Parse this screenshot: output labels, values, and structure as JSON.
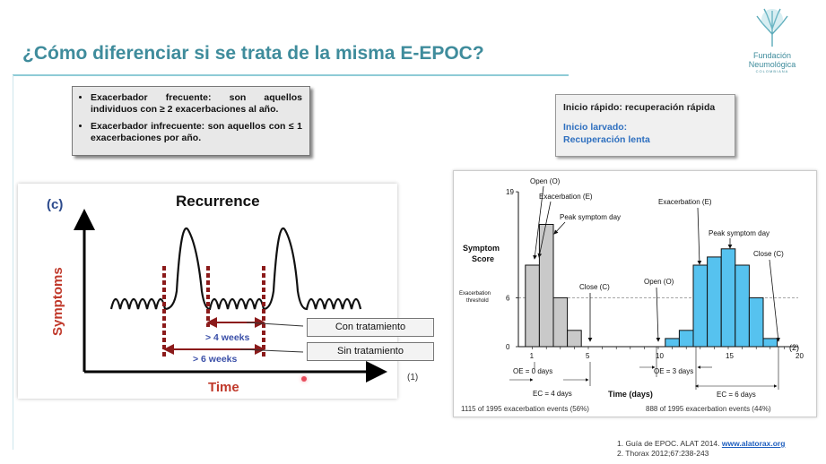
{
  "slide": {
    "title": "¿Cómo diferenciar si se trata de la misma E-EPOC?",
    "logo": {
      "line1": "Fundación",
      "line2": "Neumológica",
      "line3": "COLOMBIANA"
    },
    "definitions": [
      "Exacerbador frecuente: son aquellos individuos con ≥ 2 exacerbaciones al año.",
      "Exacerbador infrecuente: son aquellos con ≤ 1 exacerbaciones por año."
    ],
    "onset": {
      "fast": "Inicio rápido: recuperación rápida",
      "slow_1": "Inicio larvado:",
      "slow_2": "Recuperación lenta"
    },
    "ref_marker": "(1)",
    "references": {
      "ref1_prefix": "1.   Guía de EPOC. ALAT 2014. ",
      "ref1_link": "www.alatorax.org",
      "ref2": "2.        Thorax 2012;67:238-243"
    },
    "colors": {
      "title": "#3f8c9c",
      "accent_red": "#c0392b",
      "bar_blue": "#56c2ef",
      "bar_grey": "#c9c9c9",
      "link": "#1f5fbf"
    }
  },
  "recurrence_chart": {
    "panel_label": "(c)",
    "title": "Recurrence",
    "ylabel": "Symptoms",
    "xlabel": "Time",
    "arrow_short": "> 4 weeks",
    "arrow_long": "> 6 weeks",
    "box_with_treatment": "Con tratamiento",
    "box_without_treatment": "Sin tratamiento"
  },
  "chart_data": {
    "type": "bar",
    "ylabel_1": "Symptom",
    "ylabel_2": "Score",
    "threshold_label_1": "Exacerbation",
    "threshold_label_2": "threshold",
    "threshold": 6,
    "ylim": [
      0,
      19
    ],
    "y_ticks": [
      0,
      6,
      19
    ],
    "x_ticks": [
      1,
      5,
      10,
      15,
      20
    ],
    "xlabel": "Time (days)",
    "series": [
      {
        "color": "#c9c9c9",
        "x": [
          1,
          2,
          3,
          4
        ],
        "values": [
          10,
          15,
          6,
          2
        ]
      },
      {
        "color": "#56c2ef",
        "x": [
          11,
          12,
          13,
          14,
          15,
          16,
          17,
          18
        ],
        "values": [
          1,
          2,
          10,
          11,
          12,
          10,
          6,
          1
        ]
      }
    ],
    "annotations": {
      "open_left": "Open (O)",
      "exac_left": "Exacerbation (E)",
      "peak_left": "Peak symptom day",
      "close_left": "Close (C)",
      "open_right": "Open (O)",
      "exac_right": "Exacerbation (E)",
      "peak_right": "Peak symptom day",
      "close_right": "Close (C)",
      "oe_left": "OE = 0 days",
      "ec_left": "EC = 4 days",
      "oe_right": "OE = 3 days",
      "ec_right": "EC = 6 days",
      "count_left": "1115 of 1995 exacerbation events (56%)",
      "count_right": "888 of 1995 exacerbation events (44%)",
      "ref_marker": "(2)"
    }
  }
}
